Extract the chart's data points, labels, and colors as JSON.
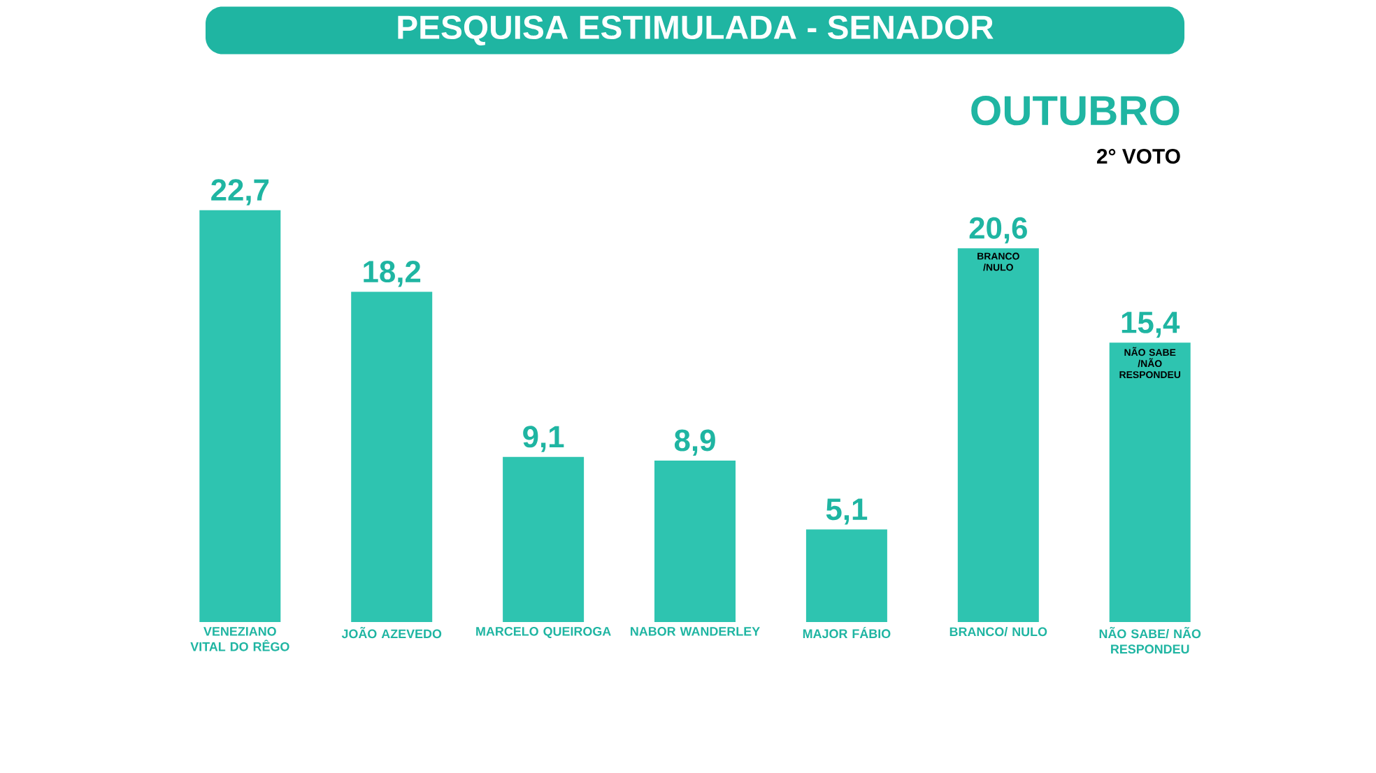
{
  "chart_data": {
    "type": "bar",
    "title": "PESQUISA ESTIMULADA - SENADOR",
    "subtitle": "OUTUBRO",
    "categories": [
      "VENEZIANO VITAL DO RÊGO",
      "JOÃO AZEVEDO",
      "MARCELO QUEIROGA",
      "NABOR WANDERLEY",
      "MAJOR FÁBIO",
      "BRANCO/ NULO",
      "NÃO SABE/ NÃO RESPONDEU"
    ],
    "values": [
      22.7,
      18.2,
      9.1,
      8.9,
      5.1,
      20.6,
      15.4
    ],
    "value_labels": [
      "22,7",
      "18,2",
      "9,1",
      "8,9",
      "5,1",
      "20,6",
      "15,4"
    ],
    "color": "#2ec4b0",
    "annotations": [
      "2° VOTO",
      {
        "text": "BRANCO /NULO",
        "x": "BRANCO/ NULO",
        "y": 20.6
      },
      {
        "text": "NÃO SABE /NÃO RESPONDEU",
        "x": "NÃO SABE/ NÃO RESPONDEU",
        "y": 15.4
      }
    ]
  }
}
